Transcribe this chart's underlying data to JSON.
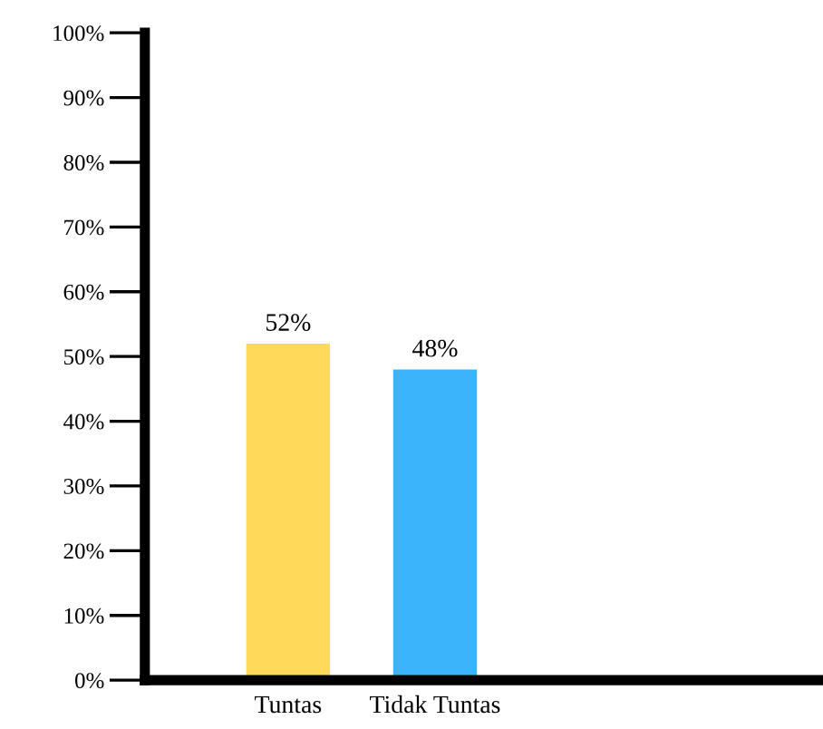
{
  "chart_data": {
    "type": "bar",
    "categories": [
      "Tuntas",
      "Tidak Tuntas"
    ],
    "values": [
      52,
      48
    ],
    "colors": [
      "#ffd95a",
      "#3cb4fb"
    ],
    "value_labels": [
      "52%",
      "48%"
    ],
    "ylim": [
      0,
      100
    ],
    "yticks": [
      {
        "value": 0,
        "label": "0%"
      },
      {
        "value": 10,
        "label": "10%"
      },
      {
        "value": 20,
        "label": "20%"
      },
      {
        "value": 30,
        "label": "30%"
      },
      {
        "value": 40,
        "label": "40%"
      },
      {
        "value": 50,
        "label": "50%"
      },
      {
        "value": 60,
        "label": "60%"
      },
      {
        "value": 70,
        "label": "70%"
      },
      {
        "value": 80,
        "label": "80%"
      },
      {
        "value": 90,
        "label": "90%"
      },
      {
        "value": 100,
        "label": "100%"
      }
    ],
    "grid": false,
    "legend": false
  }
}
